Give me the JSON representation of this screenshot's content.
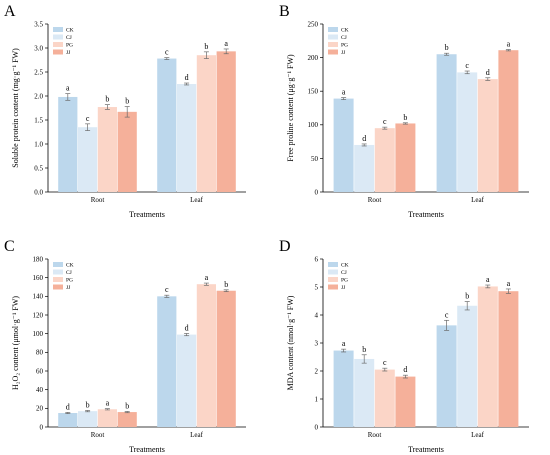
{
  "figure": {
    "panels": [
      "A",
      "B",
      "C",
      "D"
    ]
  },
  "chart_data": [
    {
      "type": "bar",
      "panel": "A",
      "ylabel": "Soluble protein content (mg·g⁻¹ FW)",
      "xlabel": "Treatments",
      "categories": [
        "Root",
        "Leaf"
      ],
      "ylim": [
        0,
        3.5
      ],
      "yticks": [
        "0.0",
        "0.5",
        "1.0",
        "1.5",
        "2.0",
        "2.5",
        "3.0",
        "3.5"
      ],
      "series": [
        {
          "name": "CK",
          "color": "#bcd7ec",
          "values": [
            1.98,
            2.78
          ],
          "errors": [
            0.07,
            0.02
          ],
          "letters": [
            "a",
            "c"
          ]
        },
        {
          "name": "CJ",
          "color": "#dbe9f5",
          "values": [
            1.35,
            2.25
          ],
          "errors": [
            0.07,
            0.02
          ],
          "letters": [
            "c",
            "d"
          ]
        },
        {
          "name": "PG",
          "color": "#fbd5c7",
          "values": [
            1.77,
            2.85
          ],
          "errors": [
            0.05,
            0.07
          ],
          "letters": [
            "b",
            "b"
          ]
        },
        {
          "name": "JJ",
          "color": "#f5b09a",
          "values": [
            1.67,
            2.93
          ],
          "errors": [
            0.11,
            0.05
          ],
          "letters": [
            "b",
            "a"
          ]
        }
      ]
    },
    {
      "type": "bar",
      "panel": "B",
      "ylabel": "Free proline content (μg·g⁻¹ FW)",
      "xlabel": "Treatments",
      "categories": [
        "Root",
        "Leaf"
      ],
      "ylim": [
        0,
        250
      ],
      "yticks": [
        "0",
        "50",
        "100",
        "150",
        "200",
        "250"
      ],
      "series": [
        {
          "name": "CK",
          "color": "#bcd7ec",
          "values": [
            139,
            205
          ],
          "errors": [
            1.5,
            1.5
          ],
          "letters": [
            "a",
            "b"
          ]
        },
        {
          "name": "CJ",
          "color": "#dbe9f5",
          "values": [
            70,
            178
          ],
          "errors": [
            1.5,
            2
          ],
          "letters": [
            "d",
            "c"
          ]
        },
        {
          "name": "PG",
          "color": "#fbd5c7",
          "values": [
            95,
            168
          ],
          "errors": [
            1.5,
            2
          ],
          "letters": [
            "c",
            "d"
          ]
        },
        {
          "name": "JJ",
          "color": "#f5b09a",
          "values": [
            102,
            211
          ],
          "errors": [
            1,
            1
          ],
          "letters": [
            "b",
            "a"
          ]
        }
      ]
    },
    {
      "type": "bar",
      "panel": "C",
      "ylabel": "H₂O₂ content (μmol·g⁻¹ FW)",
      "xlabel": "Treatments",
      "categories": [
        "Root",
        "Leaf"
      ],
      "ylim": [
        0,
        180
      ],
      "yticks": [
        "0",
        "20",
        "40",
        "60",
        "80",
        "100",
        "120",
        "140",
        "160",
        "180"
      ],
      "series": [
        {
          "name": "CK",
          "color": "#bcd7ec",
          "values": [
            15,
            140
          ],
          "errors": [
            0.7,
            1.2
          ],
          "letters": [
            "d",
            "c"
          ]
        },
        {
          "name": "CJ",
          "color": "#dbe9f5",
          "values": [
            17,
            99
          ],
          "errors": [
            0.7,
            1.2
          ],
          "letters": [
            "b",
            "d"
          ]
        },
        {
          "name": "PG",
          "color": "#fbd5c7",
          "values": [
            19,
            153
          ],
          "errors": [
            0.7,
            1.2
          ],
          "letters": [
            "a",
            "a"
          ]
        },
        {
          "name": "JJ",
          "color": "#f5b09a",
          "values": [
            16,
            146
          ],
          "errors": [
            0.7,
            1
          ],
          "letters": [
            "b",
            "b"
          ]
        }
      ]
    },
    {
      "type": "bar",
      "panel": "D",
      "ylabel": "MDA content (nmol·g⁻¹ FW)",
      "xlabel": "Treatments",
      "categories": [
        "Root",
        "Leaf"
      ],
      "ylim": [
        0,
        6
      ],
      "yticks": [
        "0",
        "1",
        "2",
        "3",
        "4",
        "5",
        "6"
      ],
      "series": [
        {
          "name": "CK",
          "color": "#bcd7ec",
          "values": [
            2.73,
            3.63
          ],
          "errors": [
            0.05,
            0.18
          ],
          "letters": [
            "a",
            "c"
          ]
        },
        {
          "name": "CJ",
          "color": "#dbe9f5",
          "values": [
            2.43,
            4.33
          ],
          "errors": [
            0.15,
            0.15
          ],
          "letters": [
            "b",
            "b"
          ]
        },
        {
          "name": "PG",
          "color": "#fbd5c7",
          "values": [
            2.05,
            5.02
          ],
          "errors": [
            0.05,
            0.05
          ],
          "letters": [
            "c",
            "a"
          ]
        },
        {
          "name": "JJ",
          "color": "#f5b09a",
          "values": [
            1.8,
            4.85
          ],
          "errors": [
            0.05,
            0.08
          ],
          "letters": [
            "d",
            "a"
          ]
        }
      ]
    }
  ]
}
